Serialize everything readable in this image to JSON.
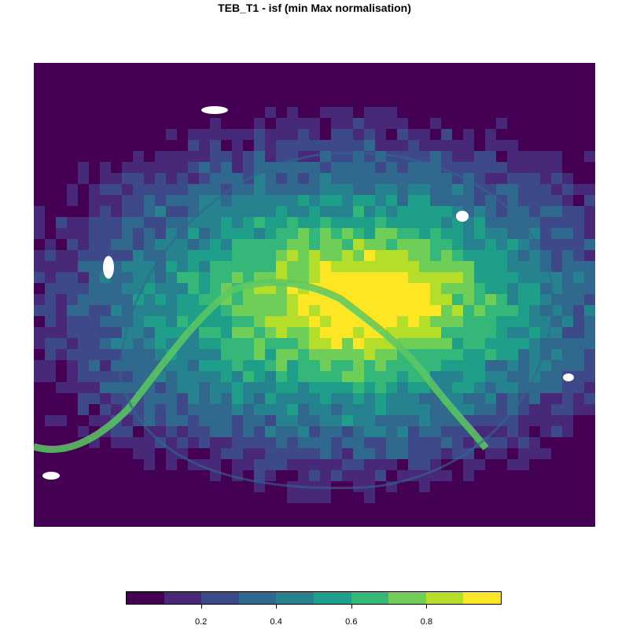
{
  "title": "TEB_T1 - isf (min Max normalisation)",
  "colors": {
    "palette": [
      "#440154",
      "#482878",
      "#3e4989",
      "#31688e",
      "#26828e",
      "#1f9e89",
      "#35b779",
      "#6ece58",
      "#b5de2b",
      "#fde725"
    ],
    "water": "#5cc863",
    "nodata": "#ffffff"
  },
  "legend": {
    "min": 0.0,
    "max": 1.0,
    "ticks": [
      {
        "value": 0.2,
        "label": "0.2"
      },
      {
        "value": 0.4,
        "label": "0.4"
      },
      {
        "value": 0.6,
        "label": "0.6"
      },
      {
        "value": 0.8,
        "label": "0.8"
      }
    ]
  }
}
